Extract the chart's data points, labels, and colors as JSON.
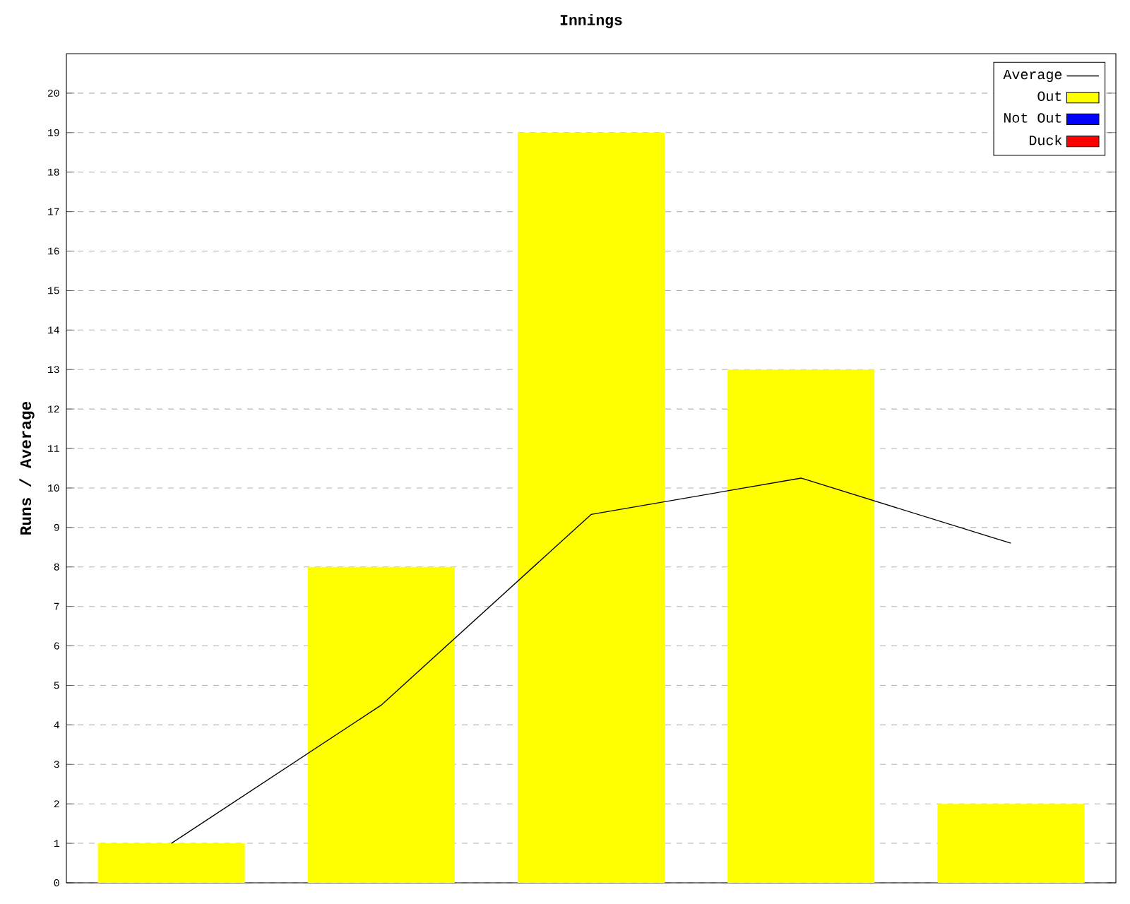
{
  "chart_data": {
    "type": "bar",
    "title": "Innings",
    "ylabel": "Runs / Average",
    "categories": [
      null,
      null,
      null,
      null,
      null
    ],
    "series": [
      {
        "name": "Average",
        "type": "line",
        "color": "#000000",
        "values": [
          1,
          4.5,
          9.33,
          10.25,
          8.6
        ]
      },
      {
        "name": "Out",
        "color": "#ffff00",
        "values": [
          1,
          8,
          19,
          13,
          2
        ]
      },
      {
        "name": "Not Out",
        "color": "#0000ff",
        "values": [
          null,
          null,
          null,
          null,
          null
        ]
      },
      {
        "name": "Duck",
        "color": "#ff0000",
        "values": [
          null,
          null,
          null,
          null,
          null
        ]
      }
    ],
    "ylim": [
      0,
      21
    ],
    "yticks": [
      0,
      1,
      2,
      3,
      4,
      5,
      6,
      7,
      8,
      9,
      10,
      11,
      12,
      13,
      14,
      15,
      16,
      17,
      18,
      19,
      20
    ],
    "grid": "y",
    "legend": "top right",
    "marker": "none"
  }
}
